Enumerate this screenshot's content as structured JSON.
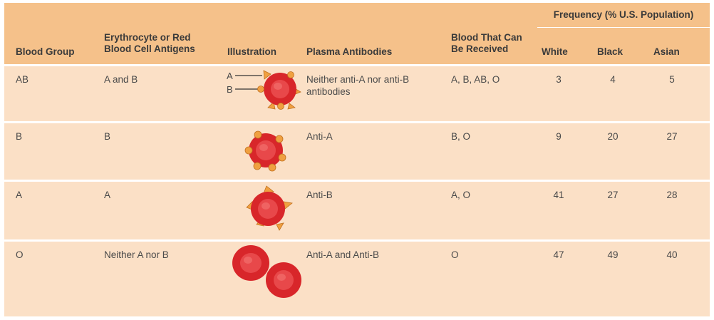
{
  "header": {
    "frequency_group": "Frequency (% U.S. Population)",
    "columns": {
      "blood_group": "Blood Group",
      "antigens_line1": "Erythrocyte or Red",
      "antigens_line2": "Blood Cell Antigens",
      "illustration": "Illustration",
      "plasma_antibodies": "Plasma Antibodies",
      "received_line1": "Blood That Can",
      "received_line2": "Be Received",
      "white": "White",
      "black": "Black",
      "asian": "Asian"
    }
  },
  "rows": [
    {
      "group": "AB",
      "antigens": "A and B",
      "illustration_labels": {
        "a": "A",
        "b": "B"
      },
      "antibodies_line1": "Neither anti-A nor anti-B",
      "antibodies_line2": "antibodies",
      "received": "A, B, AB, O",
      "white": "3",
      "black": "4",
      "asian": "5"
    },
    {
      "group": "B",
      "antigens": "B",
      "antibodies_line1": "Anti-A",
      "received": "B, O",
      "white": "9",
      "black": "20",
      "asian": "27"
    },
    {
      "group": "A",
      "antigens": "A",
      "antibodies_line1": "Anti-B",
      "received": "A, O",
      "white": "41",
      "black": "27",
      "asian": "28"
    },
    {
      "group": "O",
      "antigens": "Neither A nor B",
      "antibodies_line1": "Anti-A and Anti-B",
      "received": "O",
      "white": "47",
      "black": "49",
      "asian": "40"
    }
  ],
  "colors": {
    "header_bg": "#f5c18a",
    "row_bg": "#fbe0c6",
    "cell_red": "#d8262a",
    "antigen_orange": "#f0a040"
  }
}
